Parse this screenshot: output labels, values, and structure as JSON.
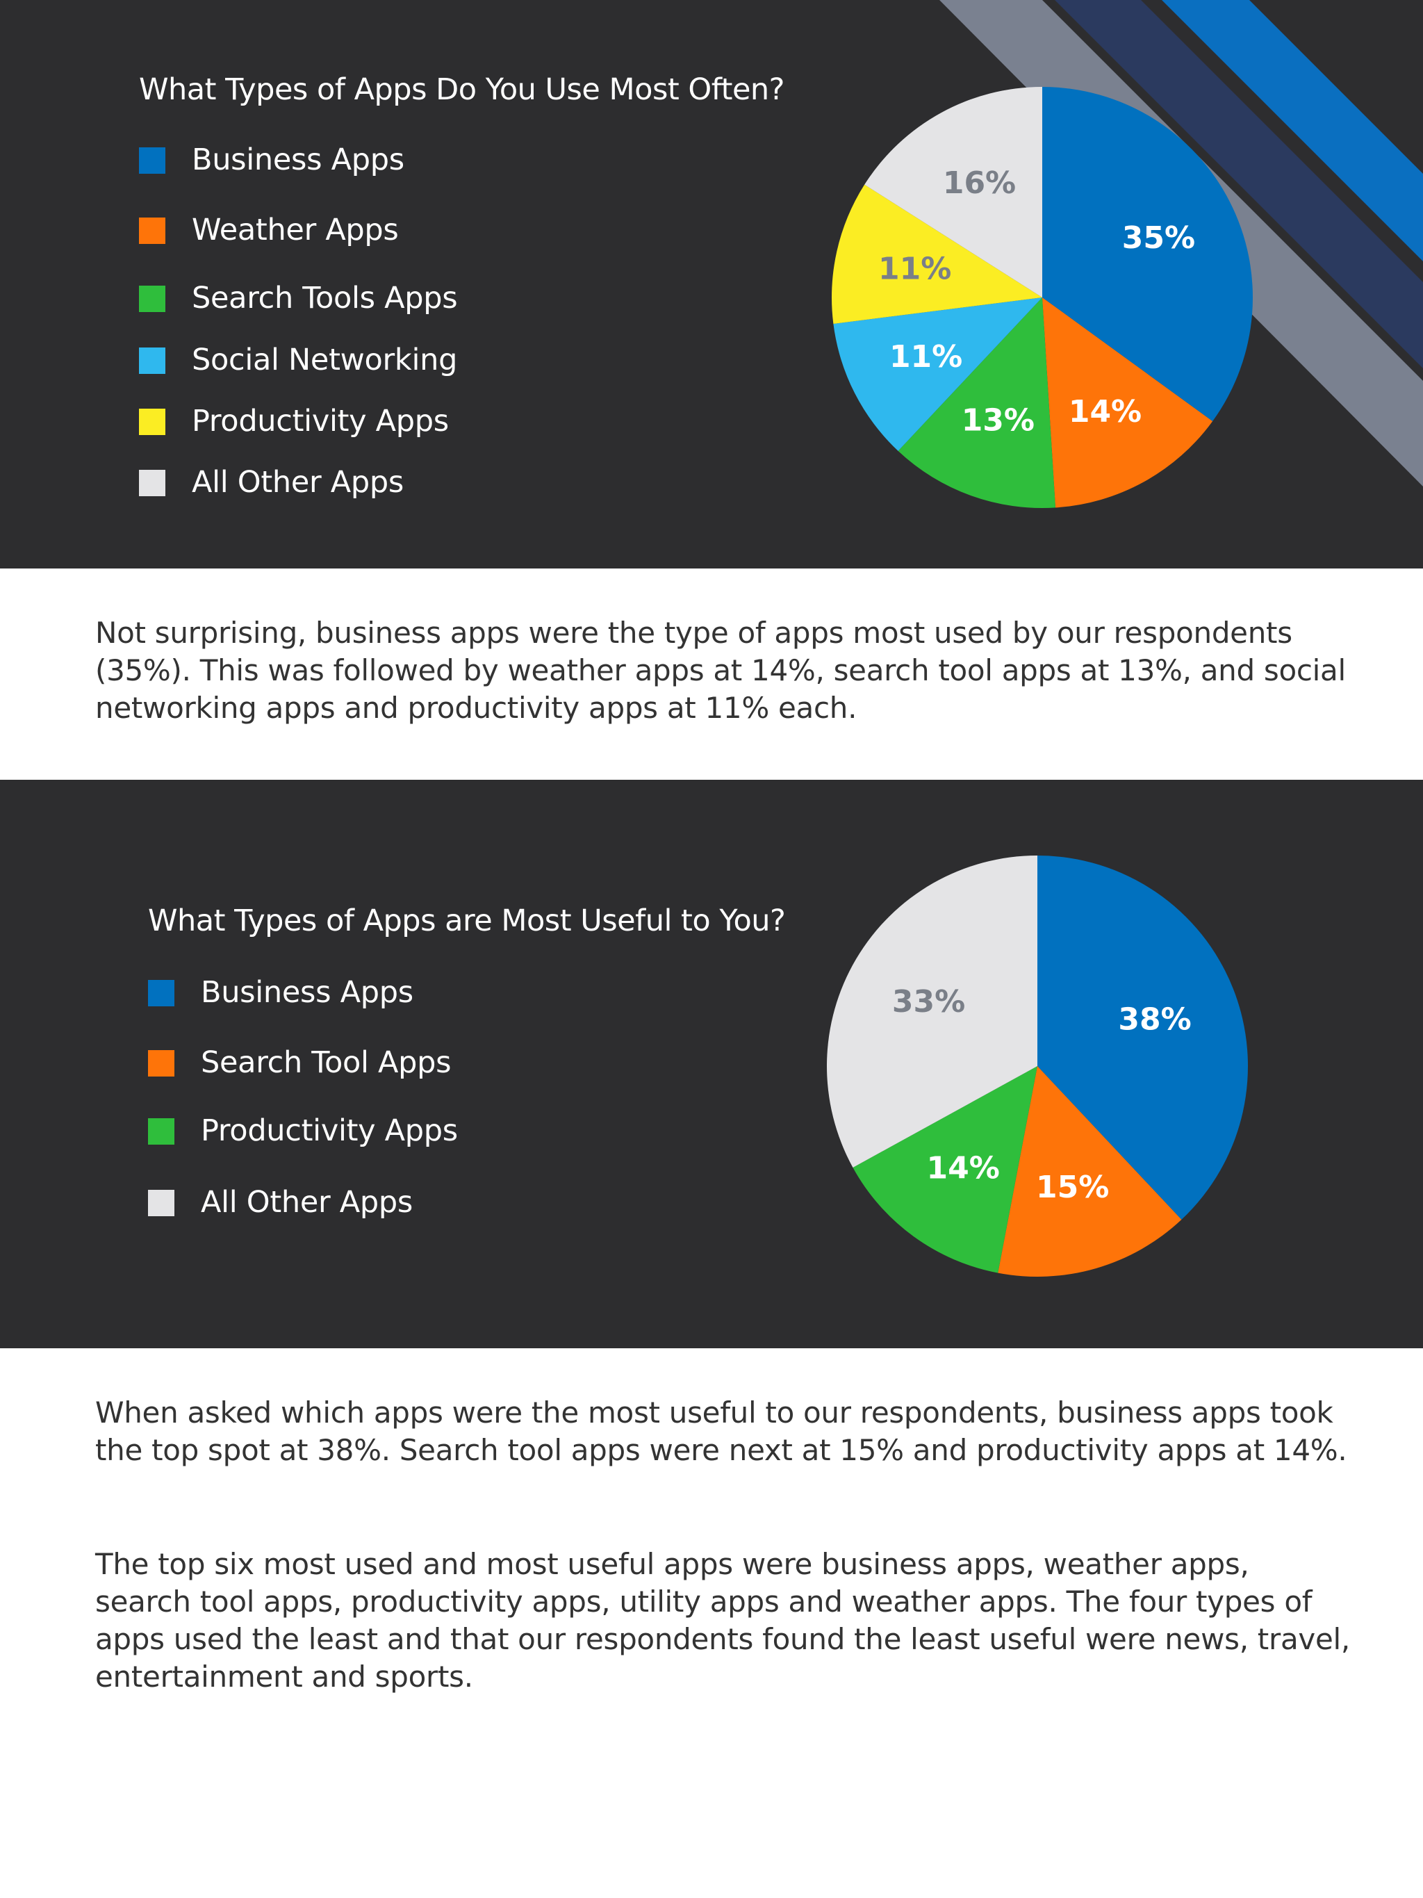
{
  "colors": {
    "panel_bg": "#2d2d2f",
    "stripe_gray": "#7a8190",
    "stripe_navy": "#2b3a5f",
    "stripe_blue": "#0a6fc0",
    "body_text": "#333333"
  },
  "chart_data": [
    {
      "type": "pie",
      "title": "What Types of Apps Do You Use Most Often?",
      "legend_position": "left",
      "start": "top",
      "direction": "clockwise",
      "slices": [
        {
          "label": "Business Apps",
          "value": 35,
          "display": "35%",
          "color": "#0171bf",
          "label_color": "#ffffff"
        },
        {
          "label": "Weather Apps",
          "value": 14,
          "display": "14%",
          "color": "#fe7409",
          "label_color": "#ffffff"
        },
        {
          "label": "Search Tools Apps",
          "value": 13,
          "display": "13%",
          "color": "#2fbe3c",
          "label_color": "#ffffff"
        },
        {
          "label": "Social Networking",
          "value": 11,
          "display": "11%",
          "color": "#2fb8ee",
          "label_color": "#ffffff"
        },
        {
          "label": "Productivity Apps",
          "value": 11,
          "display": "11%",
          "color": "#fbed23",
          "label_color": "#7a7f88"
        },
        {
          "label": "All Other Apps",
          "value": 16,
          "display": "16%",
          "color": "#e4e4e6",
          "label_color": "#7a7f88"
        }
      ]
    },
    {
      "type": "pie",
      "title": "What Types of Apps are Most Useful to You?",
      "legend_position": "left",
      "start": "top",
      "direction": "clockwise",
      "slices": [
        {
          "label": "Business Apps",
          "value": 38,
          "display": "38%",
          "color": "#0171bf",
          "label_color": "#ffffff"
        },
        {
          "label": "Search Tool Apps",
          "value": 15,
          "display": "15%",
          "color": "#fe7409",
          "label_color": "#ffffff"
        },
        {
          "label": "Productivity Apps",
          "value": 14,
          "display": "14%",
          "color": "#2fbe3c",
          "label_color": "#ffffff"
        },
        {
          "label": "All Other Apps",
          "value": 33,
          "display": "33%",
          "color": "#e4e4e6",
          "label_color": "#7a7f88"
        }
      ]
    }
  ],
  "text": {
    "paragraph1": "Not surprising, business apps were the type of apps most used by our respondents (35%). This was followed by weather apps at 14%, search tool apps at 13%, and social networking apps and productivity apps at 11% each.",
    "paragraph2": "When asked which apps were the most useful to our respondents, business apps took the top spot at 38%. Search tool apps were next at 15% and productivity apps at 14%.",
    "paragraph3": "The top six most used and most useful apps were business apps, weather apps, search tool apps, productivity apps, utility apps and weather apps. The four types of apps used the least and that our respondents found the least useful were news, travel, entertainment and sports."
  }
}
